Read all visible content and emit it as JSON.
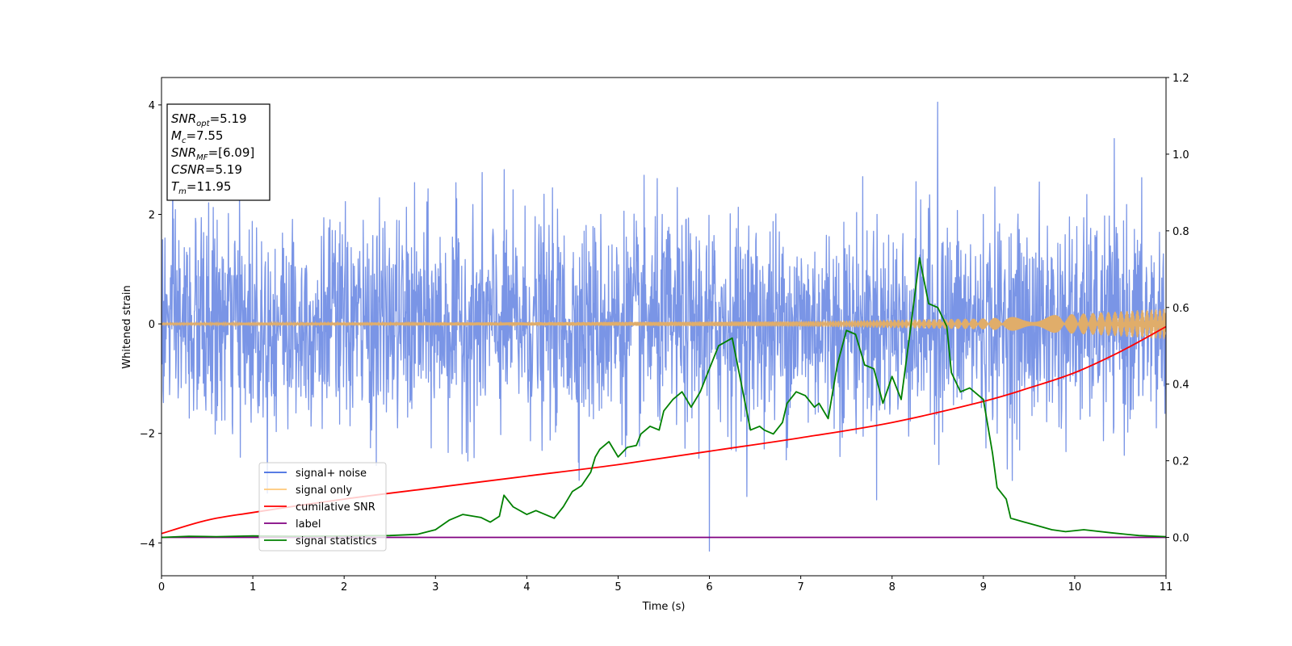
{
  "chart_data": {
    "type": "line",
    "xlabel": "Time (s)",
    "ylabel": "Whitened strain",
    "xlim": [
      0,
      11
    ],
    "ylim_left": [
      -4.6,
      4.5
    ],
    "ylim_right": [
      -0.1,
      1.2
    ],
    "x_ticks": [
      "0",
      "1",
      "2",
      "3",
      "4",
      "5",
      "6",
      "7",
      "8",
      "9",
      "10",
      "11"
    ],
    "y_ticks_left": [
      "4",
      "2",
      "0",
      "−2",
      "−4"
    ],
    "y_ticks_right": [
      "1.2",
      "1.0",
      "0.8",
      "0.6",
      "0.4",
      "0.2",
      "0.0"
    ],
    "y_ticks_left_values": [
      4,
      2,
      0,
      -2,
      -4
    ],
    "y_ticks_right_values": [
      1.2,
      1.0,
      0.8,
      0.6,
      0.4,
      0.2,
      0.0
    ],
    "legend_placement": "lower-left",
    "legend": [
      {
        "label": "signal+ noise",
        "color": "#4169e1"
      },
      {
        "label": "signal only",
        "color": "#ffc878"
      },
      {
        "label": "cumilative SNR",
        "color": "#ff0000"
      },
      {
        "label": "label",
        "color": "#800080"
      },
      {
        "label": "signal statistics",
        "color": "#008000"
      }
    ],
    "stats_box": [
      {
        "base": "SNR",
        "sub": "opt",
        "value": "=5.19"
      },
      {
        "base": "M",
        "sub": "c",
        "value": "=7.55"
      },
      {
        "base": "SNR",
        "sub": "MF",
        "value": "=[6.09]"
      },
      {
        "base": "CSNR",
        "sub": "",
        "value": "=5.19"
      },
      {
        "base": "T",
        "sub": "m",
        "value": "=11.95"
      }
    ],
    "series": [
      {
        "name": "signal+ noise",
        "axis": "left",
        "color": "#7a95e6",
        "noise_std": 0.95,
        "extremes": {
          "max": 4.05,
          "max_at": 8.5,
          "min": -4.15,
          "min_at": 6.0
        }
      },
      {
        "name": "signal only",
        "axis": "left",
        "color": "#e0ad6a",
        "envelope_x": [
          0,
          4,
          7,
          9,
          10,
          11
        ],
        "envelope_y": [
          0.02,
          0.03,
          0.05,
          0.1,
          0.18,
          0.28
        ]
      },
      {
        "name": "cumilative SNR",
        "axis": "right",
        "color": "#ff0000",
        "x": [
          0,
          0.5,
          1,
          2,
          3,
          4,
          5,
          6,
          7,
          8,
          9,
          9.5,
          10,
          10.5,
          11
        ],
        "y": [
          0.01,
          0.045,
          0.065,
          0.1,
          0.13,
          0.16,
          0.19,
          0.225,
          0.26,
          0.3,
          0.355,
          0.39,
          0.43,
          0.485,
          0.55
        ]
      },
      {
        "name": "label",
        "axis": "right",
        "color": "#800080",
        "x": [
          0,
          11
        ],
        "y": [
          0.0,
          0.0
        ]
      },
      {
        "name": "signal statistics",
        "axis": "right",
        "color": "#008000",
        "x": [
          0,
          0.3,
          0.6,
          1.0,
          1.5,
          2.0,
          2.5,
          2.8,
          3.0,
          3.15,
          3.3,
          3.5,
          3.6,
          3.7,
          3.75,
          3.85,
          4.0,
          4.1,
          4.2,
          4.3,
          4.4,
          4.5,
          4.6,
          4.7,
          4.75,
          4.8,
          4.9,
          5.0,
          5.1,
          5.2,
          5.25,
          5.35,
          5.45,
          5.5,
          5.6,
          5.7,
          5.75,
          5.8,
          5.9,
          6.0,
          6.1,
          6.25,
          6.35,
          6.45,
          6.55,
          6.6,
          6.7,
          6.8,
          6.85,
          6.95,
          7.05,
          7.15,
          7.2,
          7.3,
          7.4,
          7.5,
          7.6,
          7.7,
          7.8,
          7.9,
          8.0,
          8.1,
          8.2,
          8.3,
          8.4,
          8.5,
          8.6,
          8.65,
          8.75,
          8.85,
          9.0,
          9.1,
          9.15,
          9.25,
          9.3,
          9.45,
          9.6,
          9.75,
          9.9,
          10.1,
          10.4,
          10.7,
          11.0
        ],
        "y": [
          0.0,
          0.003,
          0.002,
          0.004,
          0.003,
          0.004,
          0.005,
          0.008,
          0.02,
          0.045,
          0.06,
          0.052,
          0.04,
          0.055,
          0.11,
          0.08,
          0.06,
          0.07,
          0.06,
          0.05,
          0.08,
          0.12,
          0.135,
          0.17,
          0.21,
          0.23,
          0.25,
          0.21,
          0.235,
          0.24,
          0.27,
          0.29,
          0.28,
          0.33,
          0.36,
          0.38,
          0.36,
          0.34,
          0.38,
          0.44,
          0.5,
          0.52,
          0.4,
          0.28,
          0.29,
          0.28,
          0.27,
          0.3,
          0.35,
          0.38,
          0.37,
          0.34,
          0.35,
          0.31,
          0.45,
          0.54,
          0.53,
          0.45,
          0.44,
          0.35,
          0.42,
          0.36,
          0.54,
          0.73,
          0.61,
          0.6,
          0.55,
          0.43,
          0.38,
          0.39,
          0.36,
          0.22,
          0.13,
          0.1,
          0.05,
          0.04,
          0.03,
          0.02,
          0.015,
          0.02,
          0.012,
          0.005,
          0.002
        ]
      }
    ]
  }
}
